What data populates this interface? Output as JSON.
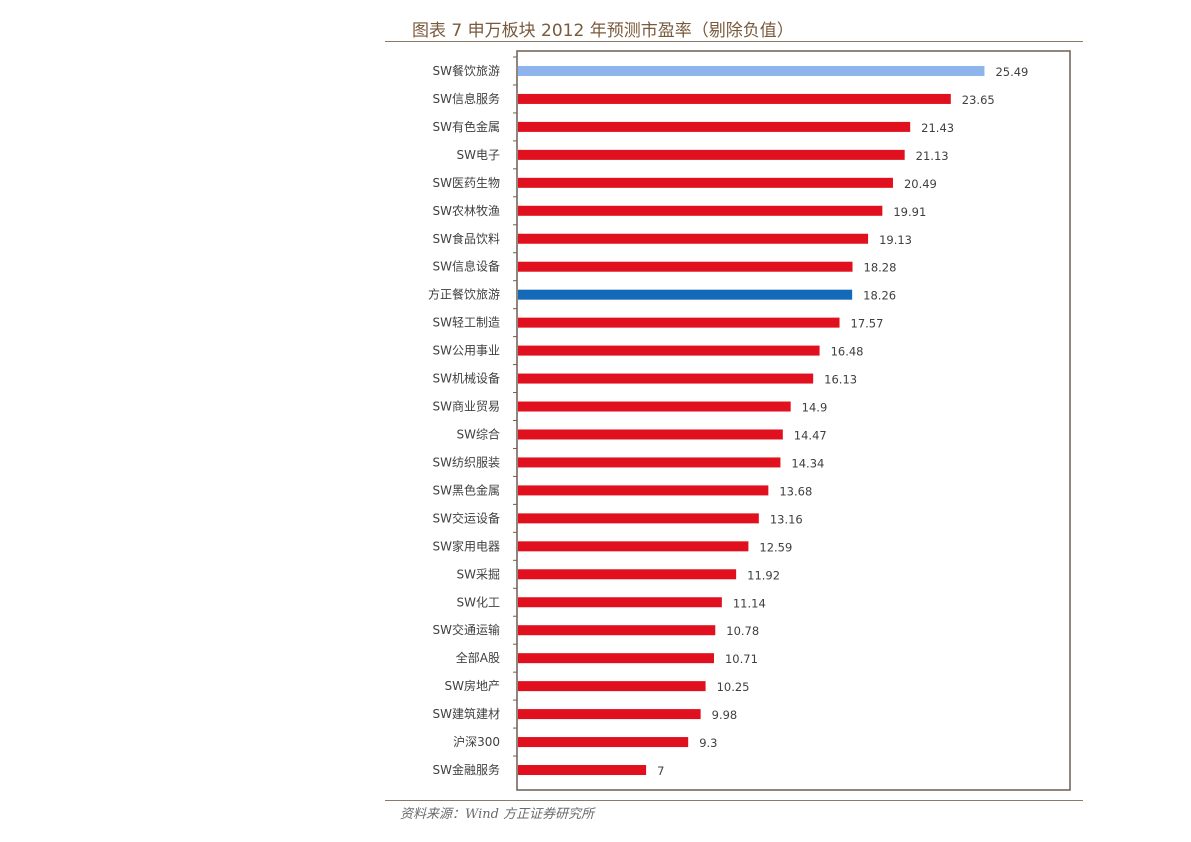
{
  "title": "图表 7 申万板块 2012 年预测市盈率（剔除负值）",
  "source": "资料来源：Wind 方正证券研究所",
  "colors": {
    "default_bar": "#e0101e",
    "highlight_light": "#8db4ec",
    "highlight_dark": "#1469b8",
    "frame": "#6e5e50",
    "label": "#404040"
  },
  "chart_data": {
    "type": "bar",
    "orientation": "horizontal",
    "title": "图表 7 申万板块 2012 年预测市盈率（剔除负值）",
    "xlim": [
      0,
      28
    ],
    "grid": false,
    "categories": [
      "SW餐饮旅游",
      "SW信息服务",
      "SW有色金属",
      "SW电子",
      "SW医药生物",
      "SW农林牧渔",
      "SW食品饮料",
      "SW信息设备",
      "方正餐饮旅游",
      "SW轻工制造",
      "SW公用事业",
      "SW机械设备",
      "SW商业贸易",
      "SW综合",
      "SW纺织服装",
      "SW黑色金属",
      "SW交运设备",
      "SW家用电器",
      "SW采掘",
      "SW化工",
      "SW交通运输",
      "全部A股",
      "SW房地产",
      "SW建筑建材",
      "沪深300",
      "SW金融服务"
    ],
    "values": [
      25.49,
      23.65,
      21.43,
      21.13,
      20.49,
      19.91,
      19.13,
      18.28,
      18.26,
      17.57,
      16.48,
      16.13,
      14.9,
      14.47,
      14.34,
      13.68,
      13.16,
      12.59,
      11.92,
      11.14,
      10.78,
      10.71,
      10.25,
      9.98,
      9.3,
      7
    ],
    "value_labels": [
      "25.49",
      "23.65",
      "21.43",
      "21.13",
      "20.49",
      "19.91",
      "19.13",
      "18.28",
      "18.26",
      "17.57",
      "16.48",
      "16.13",
      "14.9",
      "14.47",
      "14.34",
      "13.68",
      "13.16",
      "12.59",
      "11.92",
      "11.14",
      "10.78",
      "10.71",
      "10.25",
      "9.98",
      "9.3",
      "7"
    ],
    "highlight": {
      "SW餐饮旅游": "light-blue",
      "方正餐饮旅游": "dark-blue"
    }
  }
}
